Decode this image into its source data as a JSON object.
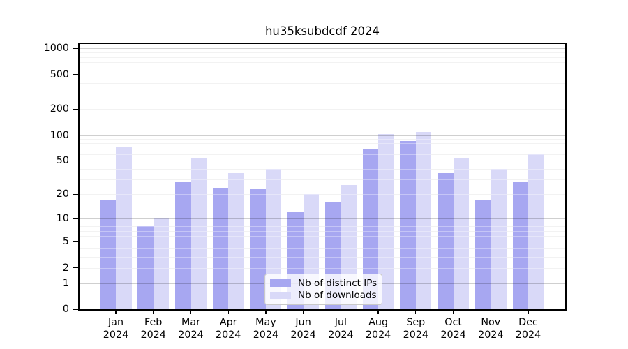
{
  "chart_data": {
    "type": "bar",
    "title": "hu35ksubdcdf 2024",
    "scale": "log10(1+x)",
    "categories": [
      "Jan",
      "Feb",
      "Mar",
      "Apr",
      "May",
      "Jun",
      "Jul",
      "Aug",
      "Sep",
      "Oct",
      "Nov",
      "Dec"
    ],
    "x_year": "2024",
    "series": [
      {
        "name": "Nb of distinct IPs",
        "color": "#a7a7f1",
        "values": [
          17,
          8,
          28,
          24,
          23,
          12,
          16,
          70,
          86,
          36,
          17,
          28
        ]
      },
      {
        "name": "Nb of downloads",
        "color": "#d9d9f8",
        "values": [
          74,
          10,
          54,
          36,
          40,
          20,
          26,
          102,
          108,
          54,
          40,
          60
        ]
      }
    ],
    "y_ticks": [
      0,
      1,
      2,
      5,
      10,
      20,
      50,
      100,
      200,
      500,
      1000
    ],
    "ylim": [
      0,
      1200
    ],
    "grid": "both",
    "major_grid_at": [
      1,
      10,
      100,
      1000
    ],
    "legend_position": "lower center"
  }
}
